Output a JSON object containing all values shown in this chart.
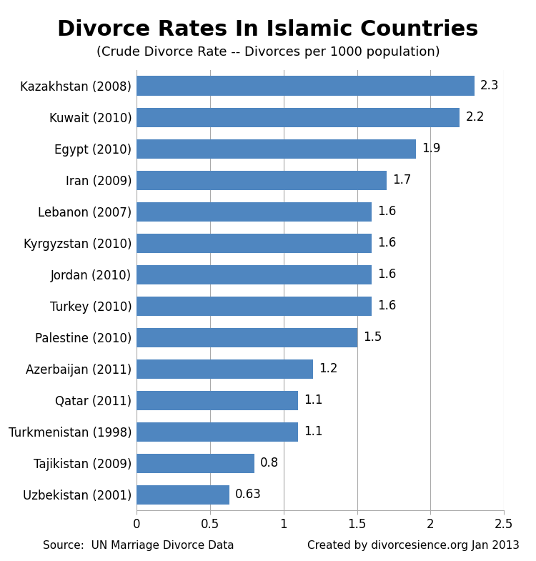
{
  "title": "Divorce Rates In Islamic Countries",
  "subtitle": "(Crude Divorce Rate -- Divorces per 1000 population)",
  "categories": [
    "Kazakhstan (2008)",
    "Kuwait (2010)",
    "Egypt (2010)",
    "Iran (2009)",
    "Lebanon (2007)",
    "Kyrgyzstan (2010)",
    "Jordan (2010)",
    "Turkey (2010)",
    "Palestine (2010)",
    "Azerbaijan (2011)",
    "Qatar (2011)",
    "Turkmenistan (1998)",
    "Tajikistan (2009)",
    "Uzbekistan (2001)"
  ],
  "values": [
    2.3,
    2.2,
    1.9,
    1.7,
    1.6,
    1.6,
    1.6,
    1.6,
    1.5,
    1.2,
    1.1,
    1.1,
    0.8,
    0.63
  ],
  "bar_color": "#4f86c0",
  "xlim": [
    0,
    2.5
  ],
  "xticks": [
    0,
    0.5,
    1,
    1.5,
    2,
    2.5
  ],
  "title_fontsize": 22,
  "subtitle_fontsize": 13,
  "tick_fontsize": 12,
  "value_fontsize": 12,
  "footer_left": "Source:  UN Marriage Divorce Data",
  "footer_right": "Created by divorcesience.org Jan 2013",
  "footer_fontsize": 11,
  "background_color": "#ffffff",
  "grid_color": "#aaaaaa",
  "bar_height": 0.62
}
